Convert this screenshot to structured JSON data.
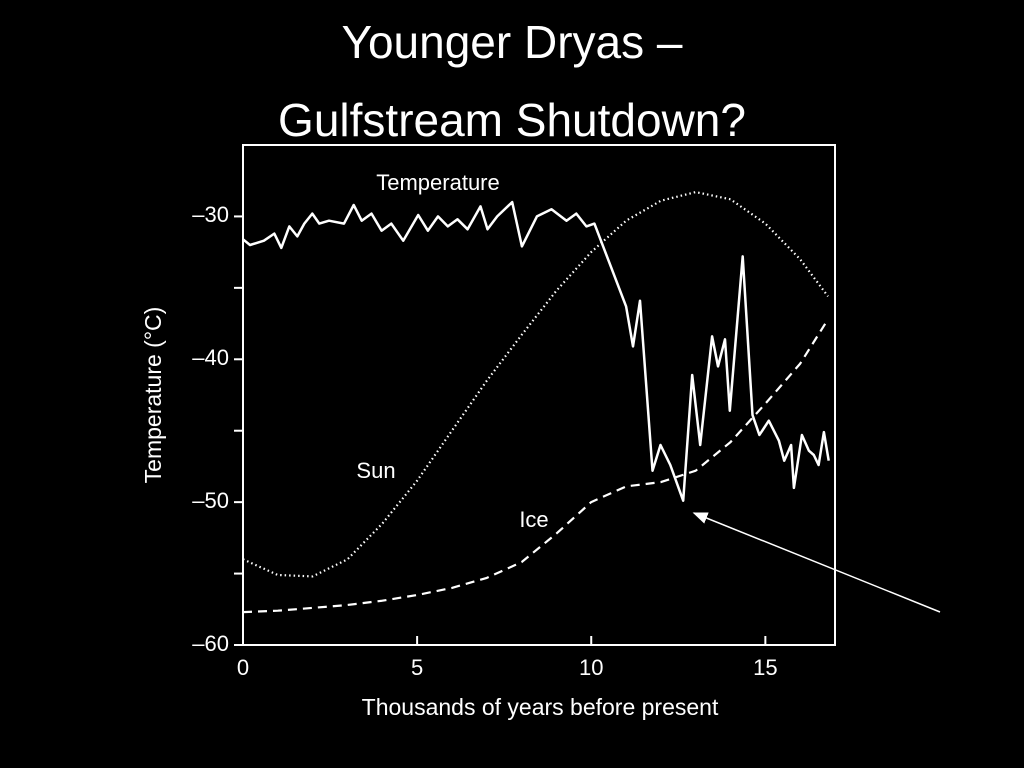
{
  "chart_data": {
    "type": "line",
    "title": [
      "Younger Dryas –",
      "Gulfstream Shutdown?"
    ],
    "xlabel": "Thousands of years before present",
    "ylabel": "Temperature (°C)",
    "xlim": [
      0,
      17
    ],
    "ylim": [
      -60,
      -25
    ],
    "xticks": [
      0,
      5,
      10,
      15
    ],
    "yticks": [
      {
        "value": -30,
        "label": "–30"
      },
      {
        "value": -40,
        "label": "–40"
      },
      {
        "value": -50,
        "label": "–50"
      },
      {
        "value": -60,
        "label": "–60"
      }
    ],
    "yminorticks": [
      -35,
      -45,
      -55
    ],
    "color": "#ffffff",
    "series": [
      {
        "name": "Temperature",
        "color": "#ffffff",
        "style": "solid",
        "x": [
          0,
          0.2,
          0.6,
          0.9,
          1.1,
          1.33,
          1.56,
          1.76,
          1.99,
          2.19,
          2.47,
          2.9,
          3.18,
          3.41,
          3.69,
          3.98,
          4.26,
          4.6,
          5.03,
          5.31,
          5.6,
          5.88,
          6.16,
          6.45,
          6.82,
          7.02,
          7.3,
          7.73,
          8.01,
          8.44,
          8.86,
          9.29,
          9.57,
          9.86,
          10.09,
          11,
          11.2,
          11.4,
          11.76,
          11.99,
          12.27,
          12.64,
          12.9,
          13.13,
          13.47,
          13.64,
          13.84,
          13.98,
          14.35,
          14.63,
          14.83,
          15.1,
          15.39,
          15.54,
          15.74,
          15.82,
          16.05,
          16.25,
          16.39,
          16.53,
          16.68,
          16.82
        ],
        "values": [
          -31.6,
          -32,
          -31.7,
          -31.2,
          -32.2,
          -30.7,
          -31.4,
          -30.5,
          -29.8,
          -30.5,
          -30.3,
          -30.5,
          -29.2,
          -30.3,
          -29.8,
          -31,
          -30.5,
          -31.7,
          -29.9,
          -31,
          -30,
          -30.7,
          -30.2,
          -30.9,
          -29.3,
          -30.9,
          -30,
          -29,
          -32.1,
          -30,
          -29.5,
          -30.3,
          -29.8,
          -30.7,
          -30.5,
          -36.3,
          -39.1,
          -35.9,
          -47.8,
          -46,
          -47.4,
          -49.9,
          -41.1,
          -46,
          -38.4,
          -40.5,
          -38.6,
          -43.6,
          -32.8,
          -43.9,
          -45.3,
          -44.3,
          -45.7,
          -47.1,
          -46,
          -49,
          -45.3,
          -46.4,
          -46.7,
          -47.4,
          -45.1,
          -47.1
        ]
      },
      {
        "name": "Sun",
        "color": "#ffffff",
        "style": "dotted",
        "x": [
          0,
          1,
          2,
          3,
          4,
          5,
          6,
          7,
          8,
          9,
          10,
          11,
          12,
          13,
          14,
          15,
          16,
          16.8
        ],
        "values": [
          -54,
          -55.1,
          -55.2,
          -54,
          -51.5,
          -48.5,
          -45,
          -41.5,
          -38.3,
          -35.2,
          -32.5,
          -30.3,
          -28.9,
          -28.3,
          -28.8,
          -30.5,
          -33,
          -35.6
        ]
      },
      {
        "name": "Ice",
        "color": "#ffffff",
        "style": "dashed",
        "x": [
          0,
          1,
          2,
          3,
          4,
          5,
          6,
          7,
          8,
          9,
          10,
          11,
          12,
          13,
          14,
          15,
          16,
          16.8
        ],
        "values": [
          -57.7,
          -57.6,
          -57.4,
          -57.2,
          -56.9,
          -56.5,
          -56,
          -55.3,
          -54.2,
          -52.2,
          -50,
          -48.9,
          -48.6,
          -47.8,
          -45.8,
          -43.1,
          -40.3,
          -37.2
        ]
      }
    ]
  }
}
